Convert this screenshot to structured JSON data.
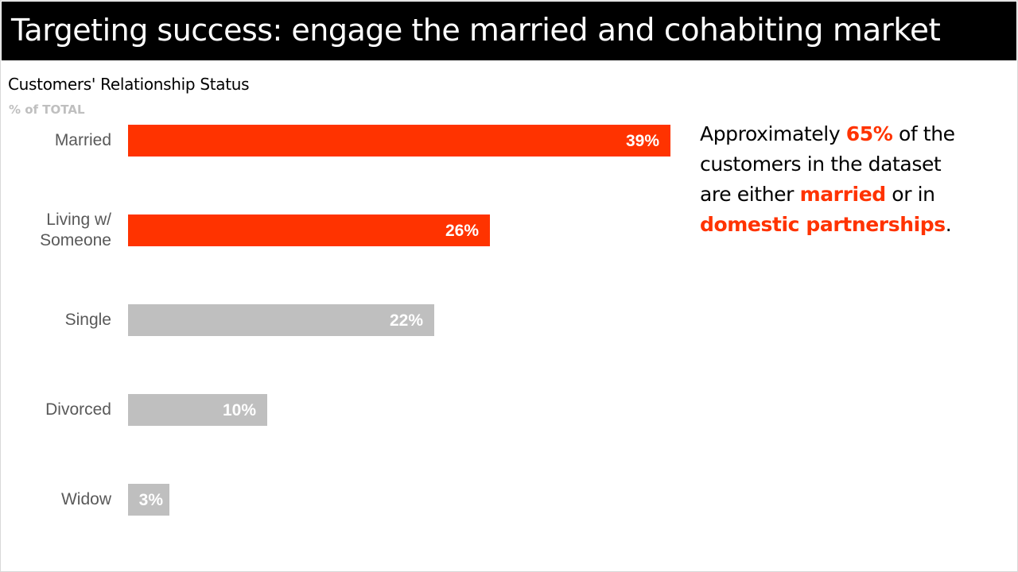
{
  "slide": {
    "title_part1": "Targeting success: engage the ",
    "title_part2": "married and cohabiting market"
  },
  "chart_data": {
    "type": "bar",
    "orientation": "horizontal",
    "title": "Customers' Relationship Status",
    "subtitle": "% of TOTAL",
    "categories": [
      "Married",
      "Living w/ Someone",
      "Single",
      "Divorced",
      "Widow"
    ],
    "category_lines": [
      [
        "Married"
      ],
      [
        "Living w/",
        "Someone"
      ],
      [
        "Single"
      ],
      [
        "Divorced"
      ],
      [
        "Widow"
      ]
    ],
    "values": [
      39,
      26,
      22,
      10,
      3
    ],
    "data_labels": [
      "39%",
      "26%",
      "22%",
      "10%",
      "3%"
    ],
    "bar_colors": [
      "#ff3300",
      "#ff3300",
      "#bfbfbf",
      "#bfbfbf",
      "#bfbfbf"
    ],
    "xlim": [
      0,
      39
    ],
    "grid": false,
    "legend": "none"
  },
  "callout": {
    "t1": "Approximately ",
    "h1": "65%",
    "t2": " of the customers in the dataset are either ",
    "h2": "married",
    "t3": " or in ",
    "h3": "domestic partnerships",
    "t4": "."
  },
  "colors": {
    "accent": "#ff3300",
    "muted": "#bfbfbf",
    "label": "#595959"
  }
}
